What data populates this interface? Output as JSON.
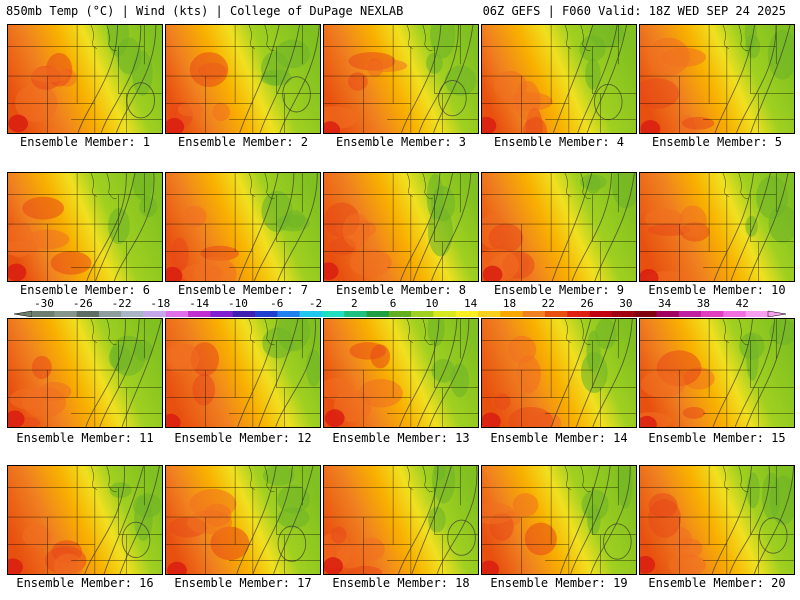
{
  "header": {
    "left_title": "850mb Temp (°C) | Wind (kts) | College of DuPage NEXLAB",
    "right_title": "06Z GEFS | F060 Valid: 18Z WED SEP 24 2025"
  },
  "members": [
    {
      "label": "Ensemble Member: 1"
    },
    {
      "label": "Ensemble Member: 2"
    },
    {
      "label": "Ensemble Member: 3"
    },
    {
      "label": "Ensemble Member: 4"
    },
    {
      "label": "Ensemble Member: 5"
    },
    {
      "label": "Ensemble Member: 6"
    },
    {
      "label": "Ensemble Member: 7"
    },
    {
      "label": "Ensemble Member: 8"
    },
    {
      "label": "Ensemble Member: 9"
    },
    {
      "label": "Ensemble Member: 10"
    },
    {
      "label": "Ensemble Member: 11"
    },
    {
      "label": "Ensemble Member: 12"
    },
    {
      "label": "Ensemble Member: 13"
    },
    {
      "label": "Ensemble Member: 14"
    },
    {
      "label": "Ensemble Member: 15"
    },
    {
      "label": "Ensemble Member: 16"
    },
    {
      "label": "Ensemble Member: 17"
    },
    {
      "label": "Ensemble Member: 18"
    },
    {
      "label": "Ensemble Member: 19"
    },
    {
      "label": "Ensemble Member: 20"
    }
  ],
  "colorbar": {
    "tick_labels": [
      "-30",
      "-26",
      "-22",
      "-18",
      "-14",
      "-10",
      "-6",
      "-2",
      "2",
      "6",
      "10",
      "14",
      "18",
      "22",
      "26",
      "30",
      "34",
      "38",
      "42"
    ],
    "colors": [
      "#6e7e6e",
      "#86968a",
      "#5e6e64",
      "#8e9e9e",
      "#a8b6c8",
      "#c6a8e8",
      "#e070e8",
      "#c030d0",
      "#8020d0",
      "#4020b0",
      "#2040d0",
      "#2080f0",
      "#20c8f0",
      "#20e0c0",
      "#20c080",
      "#20a040",
      "#60b020",
      "#a0d020",
      "#d8e820",
      "#f8f020",
      "#f8d020",
      "#f8a800",
      "#f08020",
      "#e85010",
      "#e02010",
      "#c00010",
      "#a00010",
      "#800010",
      "#a00060",
      "#c020a0",
      "#e040c0",
      "#f070e0",
      "#f8a0f0"
    ]
  }
}
